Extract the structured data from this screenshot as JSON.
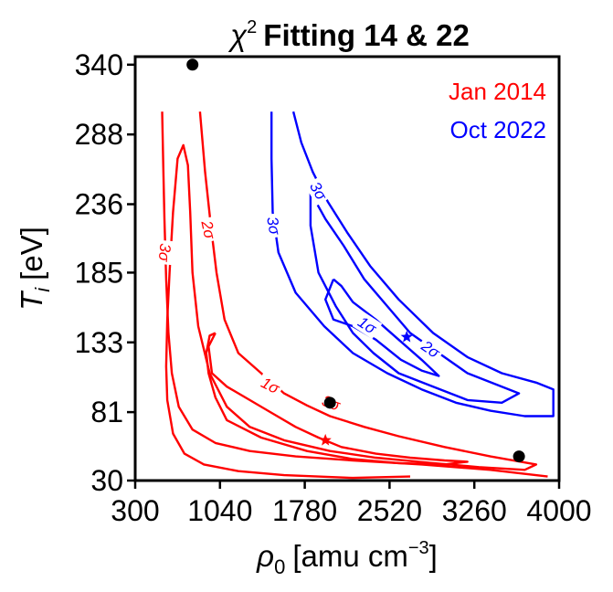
{
  "chart_data": {
    "type": "contour",
    "title": {
      "symbol": "χ",
      "superscript": "2",
      "text": "Fitting 14 & 22"
    },
    "xlabel": {
      "symbol": "ρ",
      "subscript": "0",
      "text": "[amu cm",
      "superscript": "−3",
      "suffix": "]"
    },
    "ylabel": {
      "symbol": "T",
      "subscript": "i",
      "text": "[eV]"
    },
    "xlim": [
      300,
      4000
    ],
    "ylim": [
      30,
      346
    ],
    "x_ticks": [
      300,
      1040,
      1780,
      2520,
      3260,
      4000
    ],
    "x_tick_labels": [
      "300",
      "1040",
      "1780",
      "2520",
      "3260",
      "4000"
    ],
    "y_ticks": [
      30,
      81,
      133,
      185,
      236,
      288,
      340
    ],
    "y_tick_labels": [
      "30",
      "81",
      "133",
      "185",
      "236",
      "288",
      "340"
    ],
    "legend": {
      "placement": "top-right",
      "entries": [
        {
          "label": "Jan 2014",
          "color": "#ff0000"
        },
        {
          "label": "Oct 2022",
          "color": "#0000ff"
        }
      ]
    },
    "series": [
      {
        "name": "Jan 2014",
        "color": "#ff0000",
        "best_fit": [
          1960,
          60
        ],
        "contours": [
          {
            "level": "1σ",
            "label": "1σ",
            "label_at": [
              1480,
              101
            ],
            "label_angle": 27,
            "points": [
              [
                1000,
                140
              ],
              [
                940,
                130
              ],
              [
                970,
                110
              ],
              [
                1100,
                100
              ],
              [
                1300,
                90
              ],
              [
                1500,
                80
              ],
              [
                1700,
                70
              ],
              [
                1900,
                62
              ],
              [
                2100,
                55
              ],
              [
                2400,
                50
              ],
              [
                2700,
                47
              ],
              [
                3000,
                45
              ],
              [
                3200,
                44
              ],
              [
                3000,
                42
              ],
              [
                2600,
                43
              ],
              [
                2200,
                46
              ],
              [
                1800,
                52
              ],
              [
                1400,
                62
              ],
              [
                1100,
                75
              ],
              [
                1000,
                92
              ],
              [
                940,
                110
              ],
              [
                920,
                125
              ],
              [
                950,
                138
              ],
              [
                1000,
                140
              ]
            ]
          },
          {
            "level": "2σ",
            "label": "2σ",
            "label_at": [
              940,
              217
            ],
            "label_angle": 78,
            "points": [
              [
                865,
                305
              ],
              [
                910,
                260
              ],
              [
                960,
                220
              ],
              [
                1010,
                185
              ],
              [
                1080,
                150
              ],
              [
                1200,
                125
              ],
              [
                1400,
                110
              ],
              [
                1600,
                95
              ],
              [
                1800,
                86
              ],
              [
                2000,
                78
              ],
              [
                2300,
                70
              ],
              [
                2600,
                63
              ],
              [
                3000,
                55
              ],
              [
                3400,
                48
              ],
              [
                3800,
                42
              ],
              [
                3700,
                38
              ],
              [
                3300,
                40
              ],
              [
                2900,
                43
              ],
              [
                2400,
                47
              ],
              [
                2000,
                52
              ],
              [
                1600,
                60
              ],
              [
                1300,
                70
              ],
              [
                1100,
                85
              ],
              [
                950,
                110
              ],
              [
                850,
                145
              ],
              [
                800,
                185
              ],
              [
                780,
                230
              ],
              [
                760,
                265
              ],
              [
                720,
                280
              ],
              [
                670,
                270
              ],
              [
                630,
                230
              ],
              [
                600,
                185
              ],
              [
                580,
                150
              ],
              [
                570,
                115
              ],
              [
                580,
                90
              ],
              [
                630,
                65
              ],
              [
                730,
                50
              ],
              [
                900,
                42
              ],
              [
                1200,
                37
              ],
              [
                1600,
                34
              ],
              [
                2200,
                32
              ],
              [
                2700,
                33
              ]
            ]
          },
          {
            "level": "3σ",
            "label": "3σ",
            "label_at": [
              560,
              200
            ],
            "label_angle": 95,
            "points": [
              [
                535,
                305
              ],
              [
                545,
                265
              ],
              [
                555,
                225
              ],
              [
                570,
                180
              ],
              [
                590,
                140
              ],
              [
                620,
                110
              ],
              [
                680,
                85
              ],
              [
                800,
                68
              ],
              [
                1000,
                58
              ],
              [
                1300,
                52
              ],
              [
                1700,
                48
              ],
              [
                2200,
                45
              ],
              [
                2800,
                42
              ],
              [
                3400,
                38
              ],
              [
                3900,
                33
              ]
            ]
          },
          {
            "level": "3σ",
            "label": "3σ",
            "label_at": [
              2010,
              88
            ],
            "label_angle": 20,
            "points": []
          }
        ]
      },
      {
        "name": "Oct 2022",
        "color": "#0000ff",
        "best_fit": [
          2670,
          137
        ],
        "contours": [
          {
            "level": "1σ",
            "label": "1σ",
            "label_at": [
              2325,
              146
            ],
            "label_angle": 33,
            "points": [
              [
                2030,
                180
              ],
              [
                1960,
                165
              ],
              [
                2030,
                150
              ],
              [
                2200,
                145
              ],
              [
                2400,
                135
              ],
              [
                2620,
                120
              ],
              [
                2800,
                112
              ],
              [
                2950,
                108
              ],
              [
                2800,
                120
              ],
              [
                2600,
                135
              ],
              [
                2400,
                150
              ],
              [
                2200,
                163
              ],
              [
                2100,
                175
              ],
              [
                2030,
                180
              ]
            ]
          },
          {
            "level": "2σ",
            "label": "2σ",
            "label_at": [
              2880,
              128
            ],
            "label_angle": 35,
            "points": [
              [
                1830,
                245
              ],
              [
                1960,
                225
              ],
              [
                2120,
                205
              ],
              [
                2300,
                180
              ],
              [
                2500,
                160
              ],
              [
                2700,
                140
              ],
              [
                2950,
                125
              ],
              [
                3200,
                110
              ],
              [
                3500,
                100
              ],
              [
                3650,
                95
              ],
              [
                3500,
                88
              ],
              [
                3200,
                90
              ],
              [
                2900,
                100
              ],
              [
                2600,
                110
              ],
              [
                2380,
                125
              ],
              [
                2200,
                140
              ],
              [
                2050,
                160
              ],
              [
                1900,
                185
              ],
              [
                1830,
                220
              ],
              [
                1830,
                245
              ]
            ]
          },
          {
            "level": "3σ",
            "label": "3σ",
            "label_at": [
              1900,
              246
            ],
            "label_angle": 60,
            "points": [
              [
                1680,
                305
              ],
              [
                1750,
                282
              ],
              [
                1850,
                260
              ],
              [
                1980,
                238
              ],
              [
                2150,
                215
              ],
              [
                2350,
                190
              ],
              [
                2600,
                165
              ],
              [
                2900,
                140
              ],
              [
                3200,
                122
              ],
              [
                3500,
                110
              ],
              [
                3800,
                103
              ],
              [
                3950,
                98
              ],
              [
                3950,
                78
              ],
              [
                3700,
                78
              ],
              [
                3400,
                82
              ],
              [
                3100,
                88
              ],
              [
                2800,
                98
              ],
              [
                2500,
                110
              ],
              [
                2200,
                125
              ],
              [
                1950,
                145
              ],
              [
                1700,
                170
              ],
              [
                1550,
                200
              ],
              [
                1500,
                230
              ],
              [
                1490,
                270
              ],
              [
                1490,
                305
              ]
            ]
          },
          {
            "level": "3σ",
            "label": "3σ",
            "label_at": [
              1510,
              220
            ],
            "label_angle": 80,
            "points": []
          }
        ]
      }
    ],
    "black_points": [
      [
        800,
        340
      ],
      [
        2000,
        88
      ],
      [
        3650,
        48
      ]
    ]
  }
}
